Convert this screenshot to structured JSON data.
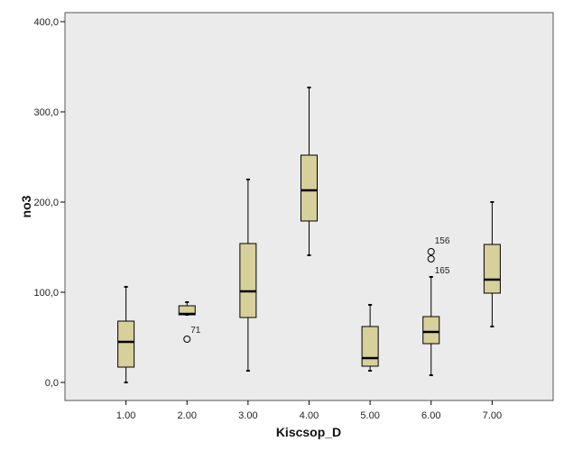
{
  "chart_data": {
    "type": "boxplot",
    "title": "",
    "xlabel": "Kiscsop_D",
    "ylabel": "no3",
    "ylim": [
      -20,
      410
    ],
    "yticks": [
      0,
      100,
      200,
      300,
      400
    ],
    "ytick_labels": [
      "0,0",
      "100,0",
      "200,0",
      "300,0",
      "400,0"
    ],
    "grid": false,
    "legend": "none",
    "categories": [
      "1.00",
      "2.00",
      "3.00",
      "4.00",
      "5.00",
      "6.00",
      "7.00"
    ],
    "boxes": [
      {
        "category": "1.00",
        "min": 0,
        "q1": 17,
        "median": 45,
        "q3": 68,
        "max": 106,
        "outliers": []
      },
      {
        "category": "2.00",
        "min": 75,
        "q1": 75,
        "median": 76,
        "q3": 85,
        "max": 89,
        "outliers": [
          {
            "value": 48,
            "label": "71"
          }
        ]
      },
      {
        "category": "3.00",
        "min": 13,
        "q1": 72,
        "median": 101,
        "q3": 154,
        "max": 225,
        "outliers": []
      },
      {
        "category": "4.00",
        "min": 141,
        "q1": 179,
        "median": 213,
        "q3": 252,
        "max": 327,
        "outliers": []
      },
      {
        "category": "5.00",
        "min": 13,
        "q1": 18,
        "median": 27,
        "q3": 62,
        "max": 86,
        "outliers": []
      },
      {
        "category": "6.00",
        "min": 8,
        "q1": 43,
        "median": 56,
        "q3": 73,
        "max": 117,
        "outliers": [
          {
            "value": 145,
            "label": "156"
          },
          {
            "value": 137,
            "label": "165"
          }
        ]
      },
      {
        "category": "7.00",
        "min": 62,
        "q1": 99,
        "median": 114,
        "q3": 153,
        "max": 200,
        "outliers": []
      }
    ],
    "colors": {
      "plot_background": "#ebebeb",
      "box_fill": "#d7d09a",
      "stroke": "#000000"
    }
  }
}
